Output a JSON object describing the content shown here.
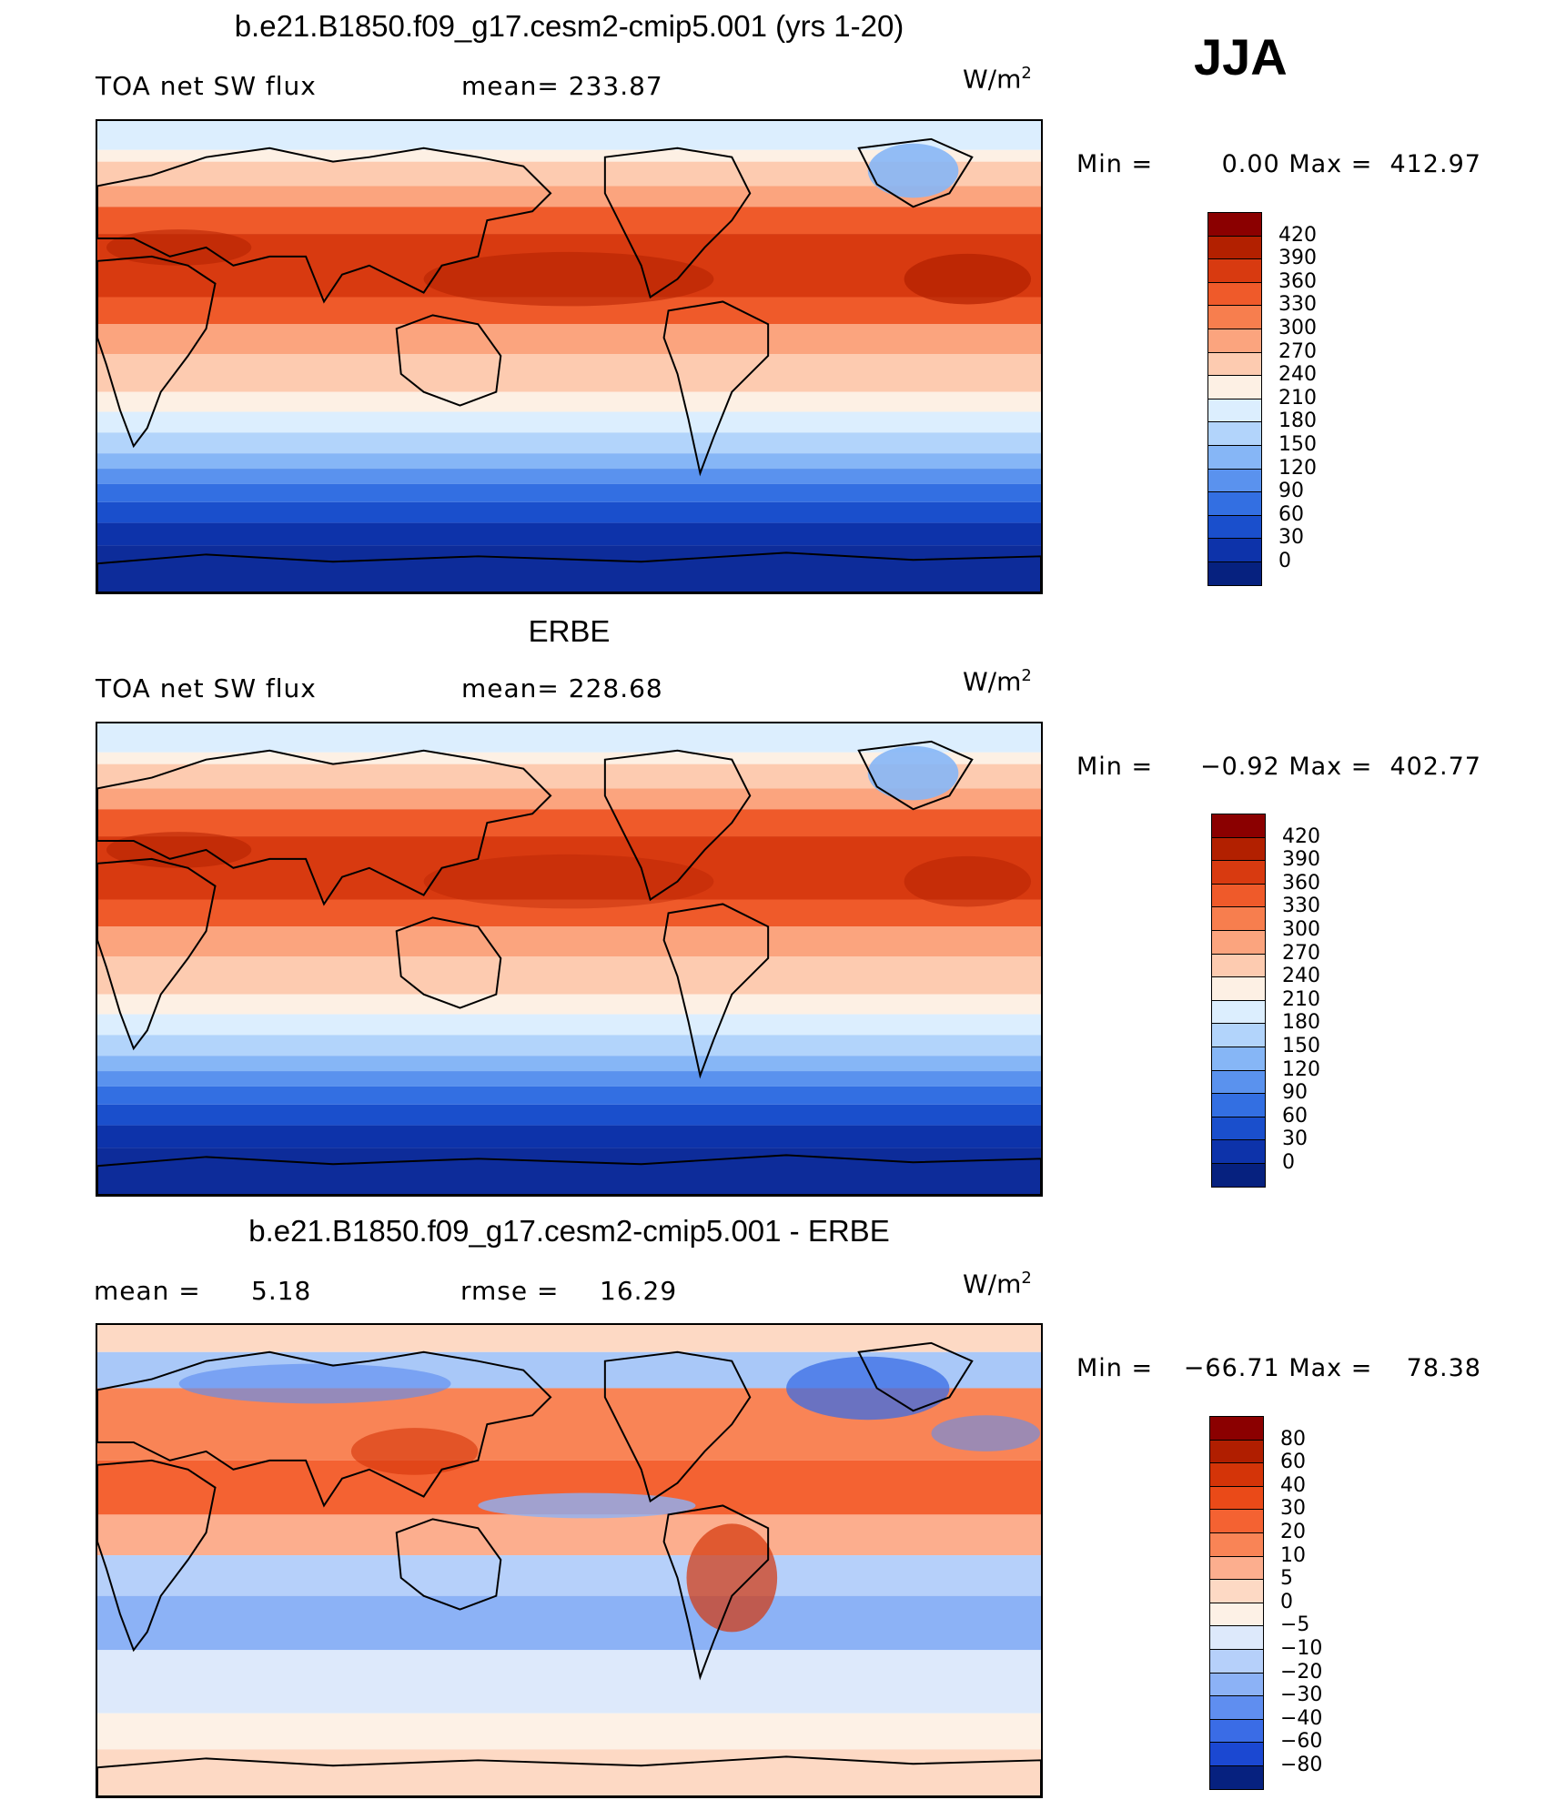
{
  "season": "JJA",
  "panels": [
    {
      "title": "b.e21.B1850.f09_g17.cesm2-cmip5.001 (yrs 1-20)",
      "left_label": "TOA net SW flux",
      "stat_label": "mean= 233.87",
      "units": "W/m",
      "units_exp": "2",
      "min_label": "Min =",
      "min_value": "0.00",
      "max_label": "Max =",
      "max_value": "412.97",
      "colorbar": {
        "labels": [
          "420",
          "390",
          "360",
          "330",
          "300",
          "270",
          "240",
          "210",
          "180",
          "150",
          "120",
          "90",
          "60",
          "30",
          "0"
        ],
        "colors": [
          "#8b0000",
          "#b22000",
          "#d83a10",
          "#ef5a2a",
          "#f77e4e",
          "#fba47e",
          "#fdcbb0",
          "#fdf0e4",
          "#dceefe",
          "#b2d4fb",
          "#86b6f6",
          "#5a92ee",
          "#336fe2",
          "#1a4fcc",
          "#0d33aa",
          "#06217f"
        ]
      }
    },
    {
      "title": "ERBE",
      "left_label": "TOA net SW flux",
      "stat_label": "mean= 228.68",
      "units": "W/m",
      "units_exp": "2",
      "min_label": "Min =",
      "min_value": "−0.92",
      "max_label": "Max =",
      "max_value": "402.77",
      "colorbar": {
        "labels": [
          "420",
          "390",
          "360",
          "330",
          "300",
          "270",
          "240",
          "210",
          "180",
          "150",
          "120",
          "90",
          "60",
          "30",
          "0"
        ],
        "colors": [
          "#8b0000",
          "#b22000",
          "#d83a10",
          "#ef5a2a",
          "#f77e4e",
          "#fba47e",
          "#fdcbb0",
          "#fdf0e4",
          "#dceefe",
          "#b2d4fb",
          "#86b6f6",
          "#5a92ee",
          "#336fe2",
          "#1a4fcc",
          "#0d33aa",
          "#06217f"
        ]
      }
    },
    {
      "title": "b.e21.B1850.f09_g17.cesm2-cmip5.001 - ERBE",
      "left_label": "mean =",
      "left_value": "5.18",
      "stat_label": "rmse =",
      "stat_value": "16.29",
      "units": "W/m",
      "units_exp": "2",
      "min_label": "Min =",
      "min_value": "−66.71",
      "max_label": "Max =",
      "max_value": "78.38",
      "colorbar": {
        "labels": [
          "80",
          "60",
          "40",
          "30",
          "20",
          "10",
          "5",
          "0",
          "−5",
          "−10",
          "−20",
          "−30",
          "−40",
          "−60",
          "−80"
        ],
        "colors": [
          "#8b0000",
          "#b01e00",
          "#d43408",
          "#ea4a18",
          "#f46232",
          "#f98456",
          "#fcae8e",
          "#fdd9c4",
          "#fdf1e6",
          "#dde9fb",
          "#b6d0fa",
          "#8cb2f6",
          "#5f8ef0",
          "#3a6ce6",
          "#1b48d2",
          "#06217f"
        ]
      }
    }
  ],
  "chart_data": [
    {
      "type": "heatmap",
      "title": "b.e21.B1850.f09_g17.cesm2-cmip5.001 (yrs 1-20)",
      "variable": "TOA net SW flux",
      "units": "W/m2",
      "season": "JJA",
      "mean": 233.87,
      "min": 0.0,
      "max": 412.97,
      "contour_levels": [
        0,
        30,
        60,
        90,
        120,
        150,
        180,
        210,
        240,
        270,
        300,
        330,
        360,
        390,
        420
      ]
    },
    {
      "type": "heatmap",
      "title": "ERBE",
      "variable": "TOA net SW flux",
      "units": "W/m2",
      "season": "JJA",
      "mean": 228.68,
      "min": -0.92,
      "max": 402.77,
      "contour_levels": [
        0,
        30,
        60,
        90,
        120,
        150,
        180,
        210,
        240,
        270,
        300,
        330,
        360,
        390,
        420
      ]
    },
    {
      "type": "heatmap",
      "title": "b.e21.B1850.f09_g17.cesm2-cmip5.001 - ERBE",
      "units": "W/m2",
      "season": "JJA",
      "mean": 5.18,
      "rmse": 16.29,
      "min": -66.71,
      "max": 78.38,
      "contour_levels": [
        -80,
        -60,
        -40,
        -30,
        -20,
        -10,
        -5,
        0,
        5,
        10,
        20,
        30,
        40,
        60,
        80
      ]
    }
  ]
}
